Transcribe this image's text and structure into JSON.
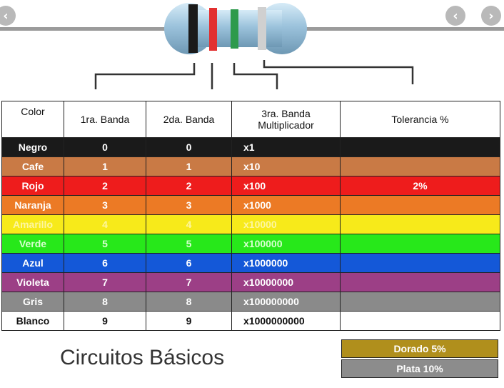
{
  "nav": {
    "prev_icon": "‹",
    "next_icon": "›"
  },
  "table": {
    "headers": {
      "color": "Color",
      "band1": "1ra. Banda",
      "band2": "2da. Banda",
      "band3_line1": "3ra. Banda",
      "band3_line2": "Multiplicador",
      "tolerance": "Tolerancia %"
    },
    "rows": [
      {
        "name": "Negro",
        "b1": "0",
        "b2": "0",
        "mult": "x1",
        "tol": "",
        "bg": "#1a1a1a",
        "fg": "#ffffff"
      },
      {
        "name": "Cafe",
        "b1": "1",
        "b2": "1",
        "mult": "x10",
        "tol": "",
        "bg": "#c97a45",
        "fg": "#ffffff"
      },
      {
        "name": "Rojo",
        "b1": "2",
        "b2": "2",
        "mult": "x100",
        "tol": "2%",
        "bg": "#ee1c1c",
        "fg": "#ffffff"
      },
      {
        "name": "Naranja",
        "b1": "3",
        "b2": "3",
        "mult": "x1000",
        "tol": "",
        "bg": "#ec7a25",
        "fg": "#ffffff"
      },
      {
        "name": "Amarillo",
        "b1": "4",
        "b2": "4",
        "mult": "x10000",
        "tol": "",
        "bg": "#f7ea1a",
        "fg": "#fdf6a0"
      },
      {
        "name": "Verde",
        "b1": "5",
        "b2": "5",
        "mult": "x100000",
        "tol": "",
        "bg": "#27e81a",
        "fg": "#d8ffd0"
      },
      {
        "name": "Azul",
        "b1": "6",
        "b2": "6",
        "mult": "x1000000",
        "tol": "",
        "bg": "#1458d8",
        "fg": "#ffffff"
      },
      {
        "name": "Violeta",
        "b1": "7",
        "b2": "7",
        "mult": "x10000000",
        "tol": "",
        "bg": "#9c3f86",
        "fg": "#ffffff"
      },
      {
        "name": "Gris",
        "b1": "8",
        "b2": "8",
        "mult": "x100000000",
        "tol": "",
        "bg": "#8a8a8a",
        "fg": "#ffffff"
      },
      {
        "name": "Blanco",
        "b1": "9",
        "b2": "9",
        "mult": "x1000000000",
        "tol": "",
        "bg": "#ffffff",
        "fg": "#111111"
      }
    ]
  },
  "extras": [
    {
      "label": "Dorado  5%",
      "bg": "#b08f1c"
    },
    {
      "label": "Plata  10%",
      "bg": "#8c8c8c"
    }
  ],
  "footer": {
    "title": "Circuitos Básicos"
  }
}
